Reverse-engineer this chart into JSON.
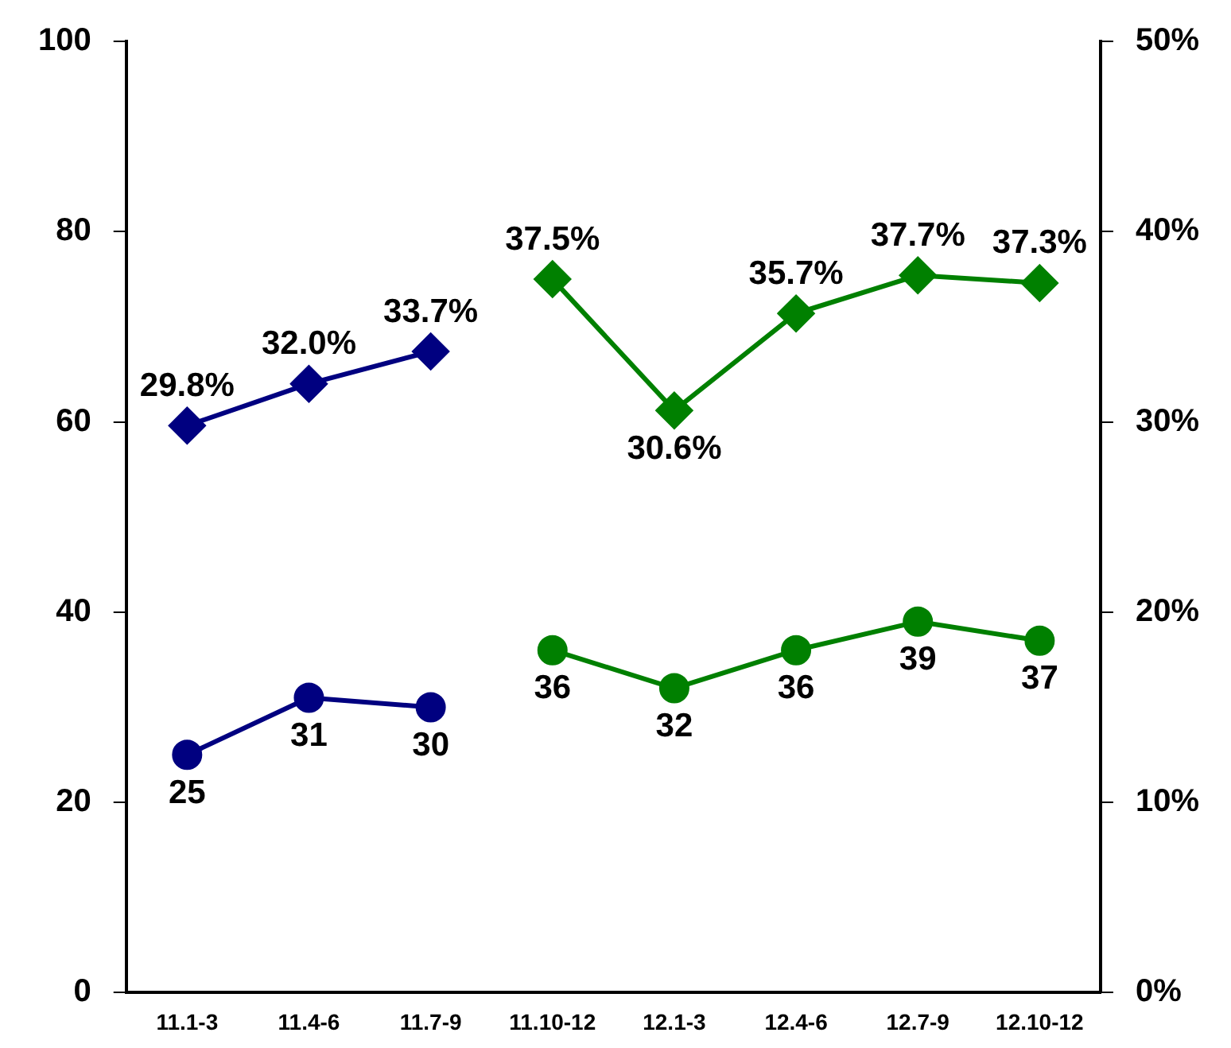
{
  "chart_data": {
    "type": "line",
    "categories": [
      "11.1-3",
      "11.4-6",
      "11.7-9",
      "11.10-12",
      "12.1-3",
      "12.4-6",
      "12.7-9",
      "12.10-12"
    ],
    "series": [
      {
        "color": "#000080",
        "marker": "circle",
        "values": [
          25,
          31,
          30,
          null,
          null,
          null,
          null,
          null
        ],
        "value_labels": [
          "25",
          "31",
          "30",
          null,
          null,
          null,
          null,
          null
        ]
      },
      {
        "color": "#008000",
        "marker": "circle",
        "values": [
          null,
          null,
          null,
          36,
          32,
          36,
          39,
          37
        ],
        "value_labels": [
          null,
          null,
          null,
          "36",
          "32",
          "36",
          "39",
          "37"
        ]
      },
      {
        "color": "#000080",
        "marker": "diamond",
        "axis": "y2",
        "values": [
          29.8,
          32.0,
          33.7,
          null,
          null,
          null,
          null,
          null
        ],
        "value_labels": [
          "29.8%",
          "32.0%",
          "33.7%",
          null,
          null,
          null,
          null,
          null
        ]
      },
      {
        "color": "#008000",
        "marker": "diamond",
        "axis": "y2",
        "values": [
          null,
          null,
          null,
          37.5,
          30.6,
          35.7,
          37.7,
          37.3
        ],
        "value_labels": [
          null,
          null,
          null,
          "37.5%",
          "30.6%",
          "35.7%",
          "37.7%",
          "37.3%"
        ]
      }
    ],
    "ylim": [
      0,
      100
    ],
    "yticks": [
      0,
      20,
      40,
      60,
      80,
      100
    ],
    "y2lim": [
      0,
      50
    ],
    "y2ticks": [
      {
        "value": 0,
        "label": "0%"
      },
      {
        "value": 10,
        "label": "10%"
      },
      {
        "value": 20,
        "label": "20%"
      },
      {
        "value": 30,
        "label": "30%"
      },
      {
        "value": 40,
        "label": "40%"
      },
      {
        "value": 50,
        "label": "50%"
      }
    ],
    "grid": false,
    "legend": false
  }
}
